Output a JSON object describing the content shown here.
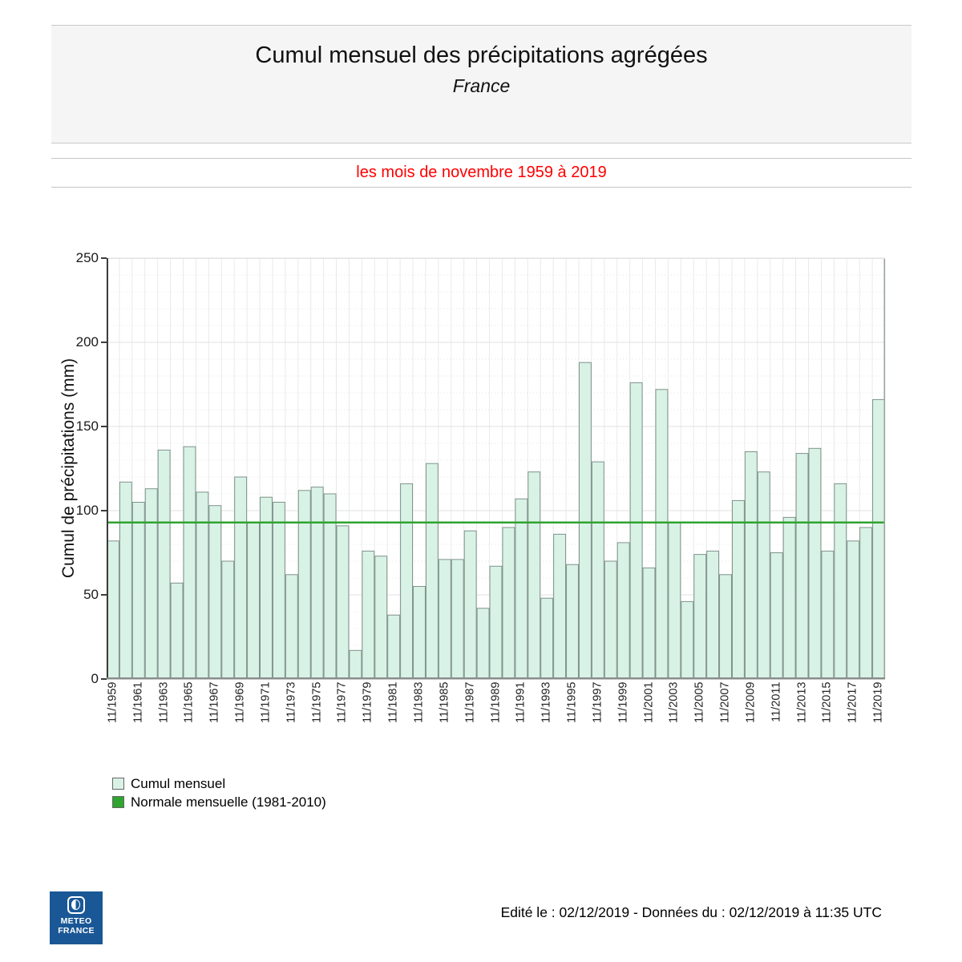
{
  "header": {
    "title": "Cumul mensuel des précipitations agrégées",
    "subtitle": "France"
  },
  "period_banner": {
    "text": "les mois de novembre 1959 à 2019",
    "color": "#ff0000"
  },
  "chart_data": {
    "type": "bar",
    "title": "Cumul mensuel des précipitations agrégées",
    "subtitle": "France",
    "period": "les mois de novembre 1959 à 2019",
    "xlabel": "",
    "ylabel": "Cumul de précipitations (mm)",
    "ylim": [
      0,
      250
    ],
    "yticks": [
      0,
      50,
      100,
      150,
      200,
      250
    ],
    "grid": true,
    "legend_position": "bottom-left",
    "series_name": "Cumul mensuel",
    "x": [
      1959,
      1960,
      1961,
      1962,
      1963,
      1964,
      1965,
      1966,
      1967,
      1968,
      1969,
      1970,
      1971,
      1972,
      1973,
      1974,
      1975,
      1976,
      1977,
      1978,
      1979,
      1980,
      1981,
      1982,
      1983,
      1984,
      1985,
      1986,
      1987,
      1988,
      1989,
      1990,
      1991,
      1992,
      1993,
      1994,
      1995,
      1996,
      1997,
      1998,
      1999,
      2000,
      2001,
      2002,
      2003,
      2004,
      2005,
      2006,
      2007,
      2008,
      2009,
      2010,
      2011,
      2012,
      2013,
      2014,
      2015,
      2016,
      2017,
      2018,
      2019
    ],
    "values": [
      82,
      117,
      105,
      113,
      136,
      57,
      138,
      111,
      103,
      70,
      120,
      93,
      108,
      105,
      62,
      112,
      114,
      110,
      91,
      17,
      76,
      73,
      38,
      116,
      55,
      128,
      71,
      71,
      88,
      42,
      67,
      90,
      107,
      123,
      48,
      86,
      68,
      188,
      129,
      70,
      81,
      176,
      66,
      172,
      93,
      46,
      74,
      76,
      62,
      106,
      135,
      123,
      75,
      96,
      134,
      137,
      76,
      116,
      82,
      90,
      166
    ],
    "x_tick_labels": [
      "11/1959",
      "11/1961",
      "11/1963",
      "11/1965",
      "11/1967",
      "11/1969",
      "11/1971",
      "11/1973",
      "11/1975",
      "11/1977",
      "11/1979",
      "11/1981",
      "11/1983",
      "11/1985",
      "11/1987",
      "11/1989",
      "11/1991",
      "11/1993",
      "11/1995",
      "11/1997",
      "11/1999",
      "11/2001",
      "11/2003",
      "11/2005",
      "11/2007",
      "11/2009",
      "11/2011",
      "11/2013",
      "11/2015",
      "11/2017",
      "11/2019"
    ],
    "normal_line": {
      "label": "Normale mensuelle (1981-2010)",
      "value": 93
    },
    "bar_color": "#d9f2e6",
    "bar_border": "#7f928b",
    "normal_color": "#2fa42f"
  },
  "footer": {
    "text": "Edité le : 02/12/2019 - Données du : 02/12/2019 à 11:35 UTC",
    "logo": {
      "line1": "METEO",
      "line2": "FRANCE",
      "bg_color": "#1a5796"
    }
  }
}
